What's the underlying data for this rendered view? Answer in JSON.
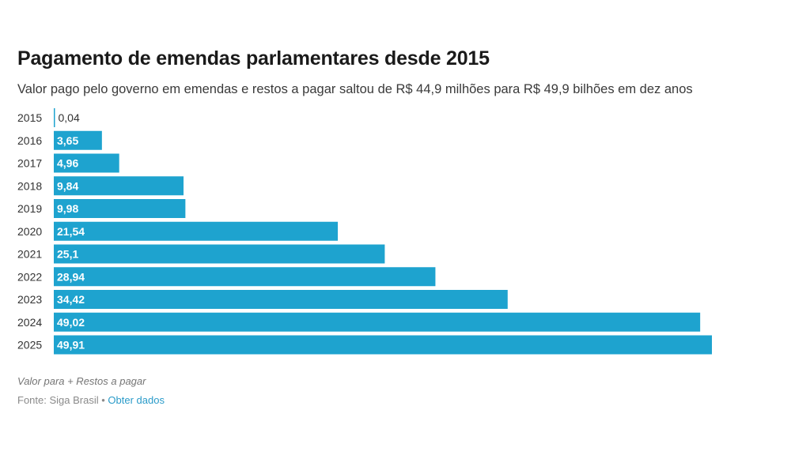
{
  "title": "Pagamento de emendas parlamentares desde 2015",
  "subtitle": "Valor pago pelo governo em emendas e restos a pagar saltou de R$ 44,9 milhões para R$ 49,9 bilhões em dez anos",
  "footer": {
    "note": "Valor para + Restos a pagar",
    "source": "Fonte: Siga Brasil",
    "separator": "•",
    "link": "Obter dados"
  },
  "colors": {
    "bar": "#1ea3cf",
    "label_inside": "#ffffff",
    "label_outside": "#333333",
    "category": "#333333"
  },
  "chart_data": {
    "type": "bar",
    "orientation": "horizontal",
    "title": "Pagamento de emendas parlamentares desde 2015",
    "subtitle": "Valor pago pelo governo em emendas e restos a pagar saltou de R$ 44,9 milhões para R$ 49,9 bilhões em dez anos",
    "xlabel": "",
    "ylabel": "",
    "categories": [
      "2015",
      "2016",
      "2017",
      "2018",
      "2019",
      "2020",
      "2021",
      "2022",
      "2023",
      "2024",
      "2025"
    ],
    "values": [
      0.04,
      3.65,
      4.96,
      9.84,
      9.98,
      21.54,
      25.1,
      28.94,
      34.42,
      49.02,
      49.91
    ],
    "value_labels": [
      "0,04",
      "3,65",
      "4,96",
      "9,84",
      "9,98",
      "21,54",
      "25,1",
      "28,94",
      "34,42",
      "49,02",
      "49,91"
    ],
    "xlim": [
      0,
      49.91
    ],
    "grid": false,
    "legend": "none"
  }
}
